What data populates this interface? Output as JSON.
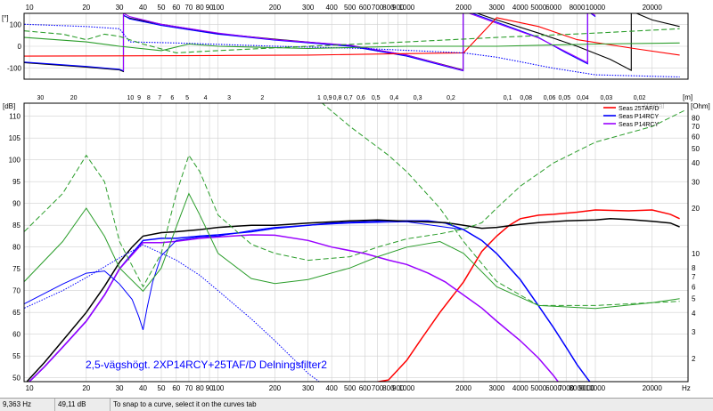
{
  "chart_data": [
    {
      "type": "line",
      "title": "",
      "xlabel": "",
      "ylabel": "[°]",
      "xscale": "log",
      "xlim": [
        9.36,
        31000
      ],
      "ylim": [
        -150,
        150
      ],
      "x_ticks": [
        10,
        20,
        30,
        40,
        50,
        60,
        70,
        80,
        90,
        100,
        200,
        300,
        400,
        500,
        600,
        700,
        800,
        900,
        1000,
        2000,
        3000,
        4000,
        5000,
        6000,
        8000,
        10000,
        20000
      ],
      "x_tick_labels": [
        "10",
        "20",
        "30",
        "40",
        "50",
        "60",
        "70",
        "80",
        "90",
        "100",
        "200",
        "300",
        "400",
        "500",
        "600",
        "700",
        "800",
        "900",
        "1000",
        "2000",
        "3000",
        "4000",
        "5000",
        "6000",
        "8000",
        "10000",
        "20000"
      ],
      "y_ticks": [
        100,
        0,
        -100
      ],
      "y_tick_labels": [
        "100",
        "0",
        "-100"
      ],
      "grid": true,
      "series": [
        {
          "color": "#000000",
          "style": "solid",
          "x": [
            9.4,
            20,
            30,
            31.5,
            31.5,
            34,
            50,
            100,
            200,
            500,
            1000,
            1990,
            1990,
            3000,
            5000,
            8000,
            12000,
            15500,
            15500,
            20000,
            28000
          ],
          "y": [
            -75,
            -95,
            -108,
            -115,
            140,
            128,
            100,
            58,
            32,
            3,
            -40,
            -108,
            172,
            120,
            60,
            0,
            -60,
            -110,
            160,
            120,
            90
          ]
        },
        {
          "color": "#0000ff",
          "style": "solid",
          "x": [
            9.4,
            20,
            30,
            31.5,
            31.5,
            34,
            50,
            100,
            200,
            500,
            1000,
            1990,
            1990,
            3000,
            5000,
            7000,
            9100,
            9100,
            10000
          ],
          "y": [
            -72,
            -92,
            -105,
            -112,
            142,
            125,
            95,
            55,
            28,
            0,
            -45,
            -112,
            165,
            110,
            40,
            -30,
            -80,
            160,
            135
          ]
        },
        {
          "color": "#9900ff",
          "style": "solid",
          "x": [
            31.5,
            31.5,
            34,
            50,
            100,
            200,
            500,
            1000,
            1990,
            1990,
            3000,
            5000,
            7000,
            9100,
            9100,
            10000
          ],
          "y": [
            -112,
            150,
            135,
            100,
            60,
            30,
            5,
            -40,
            -110,
            160,
            105,
            38,
            -25,
            -75,
            160,
            140
          ]
        },
        {
          "color": "#ff0000",
          "style": "solid",
          "x": [
            9.4,
            100,
            300,
            800,
            2000,
            3000,
            5000,
            8000,
            16000,
            28000
          ],
          "y": [
            -45,
            -42,
            -40,
            -35,
            -30,
            130,
            90,
            30,
            -10,
            -40
          ]
        },
        {
          "color": "#0000ff",
          "style": "dotted",
          "x": [
            9.4,
            20,
            30,
            34,
            60,
            200,
            600,
            1990,
            3000,
            6000,
            10000,
            28000
          ],
          "y": [
            100,
            90,
            80,
            20,
            15,
            0,
            -10,
            -30,
            -50,
            -100,
            -130,
            -140
          ]
        },
        {
          "color": "#2a9d2a",
          "style": "dashed",
          "x": [
            9.4,
            15,
            20,
            25,
            30,
            40,
            60,
            100,
            300,
            1000,
            3000,
            10000,
            28000
          ],
          "y": [
            70,
            55,
            30,
            55,
            45,
            10,
            -30,
            -20,
            0,
            20,
            40,
            60,
            80
          ]
        },
        {
          "color": "#2a9d2a",
          "style": "solid",
          "x": [
            9.4,
            20,
            30,
            50,
            70,
            100,
            300,
            1000,
            3000,
            10000,
            28000
          ],
          "y": [
            40,
            20,
            0,
            -20,
            10,
            0,
            -10,
            0,
            0,
            10,
            15
          ]
        }
      ]
    },
    {
      "type": "line",
      "title": "2,5-vägshögt. 2XP14RCY+25TAF/D Delningsfilter2",
      "xlabel": "Hz",
      "ylabel": "[dB]",
      "y2label": "[Ohm]",
      "top_axis_label": "[m]",
      "watermark": "Bartal",
      "xscale": "log",
      "xlim": [
        9.36,
        31000
      ],
      "ylim": [
        49.11,
        113
      ],
      "x_ticks": [
        10,
        20,
        30,
        40,
        50,
        60,
        70,
        80,
        90,
        100,
        200,
        300,
        400,
        500,
        600,
        700,
        800,
        900,
        1000,
        2000,
        3000,
        4000,
        5000,
        6000,
        7000,
        8000,
        9000,
        10000,
        20000
      ],
      "x_tick_labels": [
        "10",
        "20",
        "30",
        "40",
        "50",
        "60",
        "70",
        "80",
        "90",
        "100",
        "200",
        "300",
        "400",
        "500",
        "600",
        "700",
        "800",
        "900",
        "1000",
        "2000",
        "3000",
        "4000",
        "5000",
        "6000",
        "7000",
        "8000",
        "9000",
        "10000",
        "20000"
      ],
      "y_ticks": [
        50,
        55,
        60,
        65,
        70,
        75,
        80,
        85,
        90,
        95,
        100,
        105,
        110
      ],
      "y_tick_labels": [
        "50",
        "55",
        "60",
        "65",
        "70",
        "75",
        "80",
        "85",
        "90",
        "95",
        "100",
        "105",
        "110"
      ],
      "y2_ticks": [
        2,
        3,
        4,
        5,
        6,
        7,
        8,
        10,
        20,
        30,
        40,
        50,
        60,
        70,
        80
      ],
      "y2_tick_labels": [
        "2",
        "3",
        "4",
        "5",
        "6",
        "7",
        "8",
        "10",
        "20",
        "30",
        "40",
        "50",
        "60",
        "70",
        "80"
      ],
      "y2_ticks_ohm_value": [
        2,
        3,
        4,
        5,
        6,
        7,
        8,
        10,
        20,
        30,
        40,
        50,
        60,
        70,
        80
      ],
      "top_ticks_m": [
        30,
        20,
        10,
        9,
        8,
        7,
        6,
        5,
        4,
        3,
        2,
        1,
        0.9,
        0.8,
        0.7,
        0.6,
        0.5,
        0.4,
        0.3,
        0.2,
        0.1,
        0.08,
        0.06,
        0.05,
        0.04,
        0.03,
        0.02
      ],
      "top_tick_labels": [
        "30",
        "20",
        "10",
        "9",
        "8",
        "7",
        "6",
        "5",
        "4",
        "3",
        "2",
        "1",
        "0,9",
        "0,8",
        "0,7",
        "0,6",
        "0,5",
        "0,4",
        "0,3",
        "0,2",
        "0,1",
        "0,08",
        "0,06",
        "0,05",
        "0,04",
        "0,03",
        "0,02"
      ],
      "grid": true,
      "legend_position": "top-right",
      "series": [
        {
          "name": "Seas 25TAF/D",
          "color": "#ff0000",
          "style": "solid",
          "axis": "dB",
          "x": [
            9.4,
            500,
            800,
            1000,
            1200,
            1500,
            2000,
            2500,
            3000,
            3500,
            4000,
            5000,
            6000,
            8000,
            10000,
            15000,
            20000,
            25000,
            28000
          ],
          "y": [
            48,
            48,
            49.5,
            54,
            59,
            65,
            72,
            79,
            82.5,
            85,
            86.5,
            87.3,
            87.5,
            88,
            88.5,
            88.3,
            88.5,
            87.5,
            86.5
          ]
        },
        {
          "name": "Seas P14RCY",
          "color": "#0000ff",
          "style": "solid",
          "axis": "dB",
          "x": [
            9.4,
            12,
            15,
            20,
            25,
            30,
            40,
            50,
            60,
            80,
            100,
            150,
            200,
            300,
            400,
            600,
            800,
            1000,
            1300,
            1600,
            2000,
            2500,
            3000,
            4000,
            5000,
            6000,
            7000,
            8000,
            9000,
            10000
          ],
          "y": [
            48,
            52.5,
            57,
            63,
            69,
            75,
            81.5,
            82,
            82,
            82.5,
            82.8,
            83.5,
            84.3,
            85,
            85.5,
            85.8,
            86,
            86,
            86,
            85.5,
            84,
            81.5,
            78.5,
            72.5,
            66.5,
            61.5,
            57,
            53,
            50,
            47.5
          ]
        },
        {
          "name": "Seas P14RCY",
          "color": "#9900ff",
          "style": "solid",
          "axis": "dB",
          "x": [
            9.4,
            12,
            15,
            20,
            25,
            30,
            40,
            50,
            60,
            80,
            100,
            150,
            200,
            300,
            400,
            600,
            800,
            1000,
            1300,
            1600,
            2000,
            2500,
            3000,
            4000,
            5000,
            6000,
            6500,
            7000
          ],
          "y": [
            48,
            52.5,
            57,
            63,
            69,
            75,
            81,
            81,
            81.3,
            82,
            82.3,
            82.8,
            82.7,
            81.5,
            80,
            78.5,
            77,
            76,
            74,
            72,
            69,
            66,
            63,
            58.5,
            54.5,
            50.5,
            48.5,
            47
          ]
        },
        {
          "color": "#000000",
          "style": "solid",
          "axis": "dB",
          "x": [
            9.4,
            12,
            15,
            20,
            25,
            30,
            35,
            40,
            50,
            60,
            80,
            100,
            150,
            200,
            300,
            500,
            700,
            900,
            1200,
            1600,
            2000,
            2500,
            3000,
            4000,
            5000,
            7000,
            10000,
            12000,
            15000,
            20000,
            25000,
            28000
          ],
          "y": [
            48.5,
            53.5,
            58.5,
            65,
            71,
            76.5,
            80,
            82.5,
            83.3,
            83.5,
            84,
            84.5,
            85,
            85,
            85.5,
            86,
            86.2,
            86,
            85.8,
            85.6,
            85,
            84.3,
            84.5,
            85.2,
            85.6,
            86,
            86.2,
            86.5,
            86.3,
            85.9,
            85.5,
            84.6
          ]
        },
        {
          "color": "#0000ff",
          "style": "solid",
          "axis": "dB",
          "x": [
            9.4,
            15,
            20,
            25,
            30,
            35,
            38,
            40,
            42,
            45,
            50,
            60,
            80,
            100,
            150,
            200,
            300,
            500,
            1000,
            2000
          ],
          "y": [
            67,
            71.5,
            74,
            74.5,
            71.5,
            68,
            64,
            61,
            66,
            72,
            78,
            81.5,
            82.3,
            82.5,
            83.8,
            84.5,
            85,
            85.5,
            85.8,
            84
          ]
        },
        {
          "color": "#0000ff",
          "style": "dotted",
          "axis": "dB",
          "x": [
            9.4,
            15,
            20,
            30,
            40,
            60,
            80,
            100,
            150,
            200,
            300,
            400
          ],
          "y": [
            66,
            70,
            73,
            77.5,
            80.5,
            77,
            73.5,
            70,
            63.5,
            58.5,
            51,
            47
          ]
        },
        {
          "color": "#2a9d2a",
          "style": "solid",
          "axis": "ohm",
          "x": [
            9.4,
            15,
            20,
            25,
            30,
            40,
            50,
            60,
            70,
            80,
            100,
            150,
            200,
            300,
            500,
            700,
            1000,
            1500,
            2000,
            3000,
            5000,
            10000,
            20000,
            28000
          ],
          "y": [
            6.5,
            12,
            20,
            13,
            8,
            5.6,
            8,
            15,
            25,
            18,
            10,
            6.8,
            6.3,
            6.7,
            8,
            9.5,
            11,
            12,
            10,
            6,
            4.5,
            4.3,
            4.7,
            5
          ]
        },
        {
          "color": "#2a9d2a",
          "style": "dashed",
          "axis": "ohm",
          "x": [
            9.4,
            15,
            20,
            25,
            30,
            40,
            50,
            60,
            70,
            80,
            100,
            150,
            200,
            300,
            500,
            700,
            1000,
            1500,
            2000,
            2500,
            3000,
            4000,
            6000,
            10000,
            20000,
            30000
          ],
          "y": [
            14,
            25,
            45,
            30,
            12,
            6,
            10,
            25,
            45,
            35,
            18,
            11.5,
            10,
            9,
            9.5,
            11,
            12.5,
            13.5,
            14.5,
            16,
            20,
            28,
            40,
            55,
            70,
            90
          ]
        },
        {
          "color": "#2a9d2a",
          "style": "dashed",
          "axis": "ohm",
          "x": [
            200,
            300,
            500,
            800,
            1000,
            1500,
            2000,
            3000,
            5000,
            10000,
            28000
          ],
          "y": [
            200,
            120,
            70,
            45,
            35,
            20,
            12,
            6.5,
            4.5,
            4.5,
            4.8
          ]
        }
      ]
    }
  ],
  "statusbar": {
    "frequency": "9,363 Hz",
    "level": "49,11 dB",
    "hint": "To snap to a curve, select it on the curves tab"
  }
}
